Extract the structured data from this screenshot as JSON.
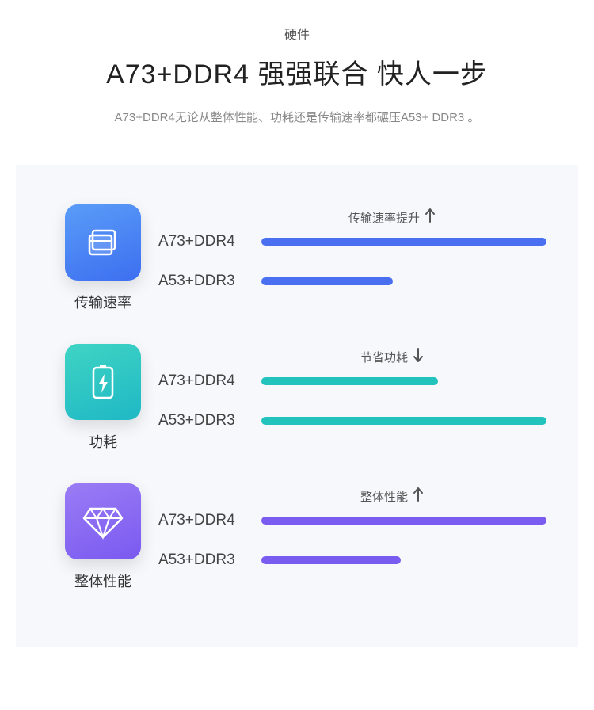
{
  "header": {
    "subtitle": "硬件",
    "title": "A73+DDR4  强强联合  快人一步",
    "desc": "A73+DDR4无论从整体性能、功耗还是传输速率都碾压A53+ DDR3 。"
  },
  "panel_bg": "#f6f8fc",
  "sections": [
    {
      "id": "transfer",
      "icon_label": "传输速率",
      "icon_gradient_from": "#5a9cf8",
      "icon_gradient_to": "#3d6ff0",
      "icon_svg": "windows",
      "annotation": "传输速率提升",
      "arrow": "up",
      "bar_color": "#4a6ff0",
      "bars": [
        {
          "label": "A73+DDR4",
          "percent": 100
        },
        {
          "label": "A53+DDR3",
          "percent": 46
        }
      ]
    },
    {
      "id": "power",
      "icon_label": "功耗",
      "icon_gradient_from": "#3fd4c4",
      "icon_gradient_to": "#1fb8c5",
      "icon_svg": "battery",
      "annotation": "节省功耗",
      "arrow": "down",
      "bar_color": "#22c2bd",
      "bars": [
        {
          "label": "A73+DDR4",
          "percent": 62
        },
        {
          "label": "A53+DDR3",
          "percent": 100
        }
      ]
    },
    {
      "id": "performance",
      "icon_label": "整体性能",
      "icon_gradient_from": "#9a7cf5",
      "icon_gradient_to": "#7a5af0",
      "icon_svg": "diamond",
      "annotation": "整体性能",
      "arrow": "up",
      "bar_color": "#7a5cf0",
      "bars": [
        {
          "label": "A73+DDR4",
          "percent": 100
        },
        {
          "label": "A53+DDR3",
          "percent": 49
        }
      ]
    }
  ]
}
